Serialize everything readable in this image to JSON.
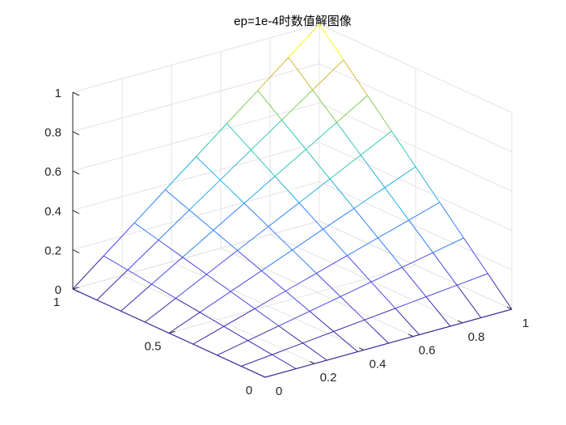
{
  "chart_data": {
    "type": "surface",
    "title": "ep=1e-4时数值解图像",
    "xlabel": "",
    "ylabel": "",
    "zlabel": "",
    "x": [
      0,
      0.125,
      0.25,
      0.375,
      0.5,
      0.625,
      0.75,
      0.875,
      1
    ],
    "y": [
      0,
      0.125,
      0.25,
      0.375,
      0.5,
      0.625,
      0.75,
      0.875,
      1
    ],
    "z_formula": "x*y",
    "xlim": [
      0,
      1
    ],
    "ylim": [
      0,
      1
    ],
    "zlim": [
      0,
      1
    ],
    "x_ticks": [
      "0",
      "0.2",
      "0.4",
      "0.6",
      "0.8",
      "1"
    ],
    "y_ticks": [
      "0",
      "0.5",
      "1"
    ],
    "z_ticks": [
      "0",
      "0.2",
      "0.4",
      "0.6",
      "0.8",
      "1"
    ],
    "grid": true,
    "colormap": [
      "#3e26a8",
      "#4a46e8",
      "#2f7ffa",
      "#25aee0",
      "#2dc8b3",
      "#7fcd5a",
      "#d1bb31",
      "#f9fb15"
    ],
    "axis_color": "#262626",
    "grid_color": "#e3e3e3"
  }
}
